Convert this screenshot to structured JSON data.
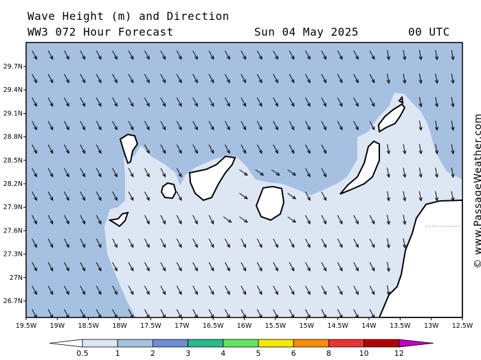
{
  "header": {
    "title": "Wave Height (m) and Direction",
    "model": "WW3 072 Hour Forecast",
    "date": "Sun 04 May 2025",
    "time": "00 UTC"
  },
  "map": {
    "lat_labels": [
      "29.7N",
      "29.4N",
      "29.1N",
      "28.8N",
      "28.5N",
      "28.2N",
      "27.9N",
      "27.6N",
      "27.3N",
      "27N",
      "26.7N"
    ],
    "lon_labels": [
      "19.5W",
      "19W",
      "18.5W",
      "18W",
      "17.5W",
      "17W",
      "16.5W",
      "16W",
      "15.5W",
      "15W",
      "14.5W",
      "14W",
      "13.5W",
      "13W",
      "12.5W"
    ],
    "copyright": "© www.PassageWeather.com",
    "colors": {
      "band_0_5_to_1": "#dde6f3",
      "band_1_to_2": "#a6c0e1",
      "land": "#ffffff",
      "coast": "#000000",
      "arrow": "#000000"
    },
    "dominant_direction": "from NW (arrows point SE)"
  },
  "colorbar": {
    "labels": [
      "0.5",
      "1",
      "2",
      "3",
      "4",
      "5",
      "6",
      "8",
      "10",
      "12"
    ],
    "colors": [
      "#dde6f3",
      "#a6c0e1",
      "#6b8fd0",
      "#27bb8e",
      "#5fe85f",
      "#f5e600",
      "#ff8c00",
      "#ee3333",
      "#b30000",
      "#c000c0"
    ]
  }
}
